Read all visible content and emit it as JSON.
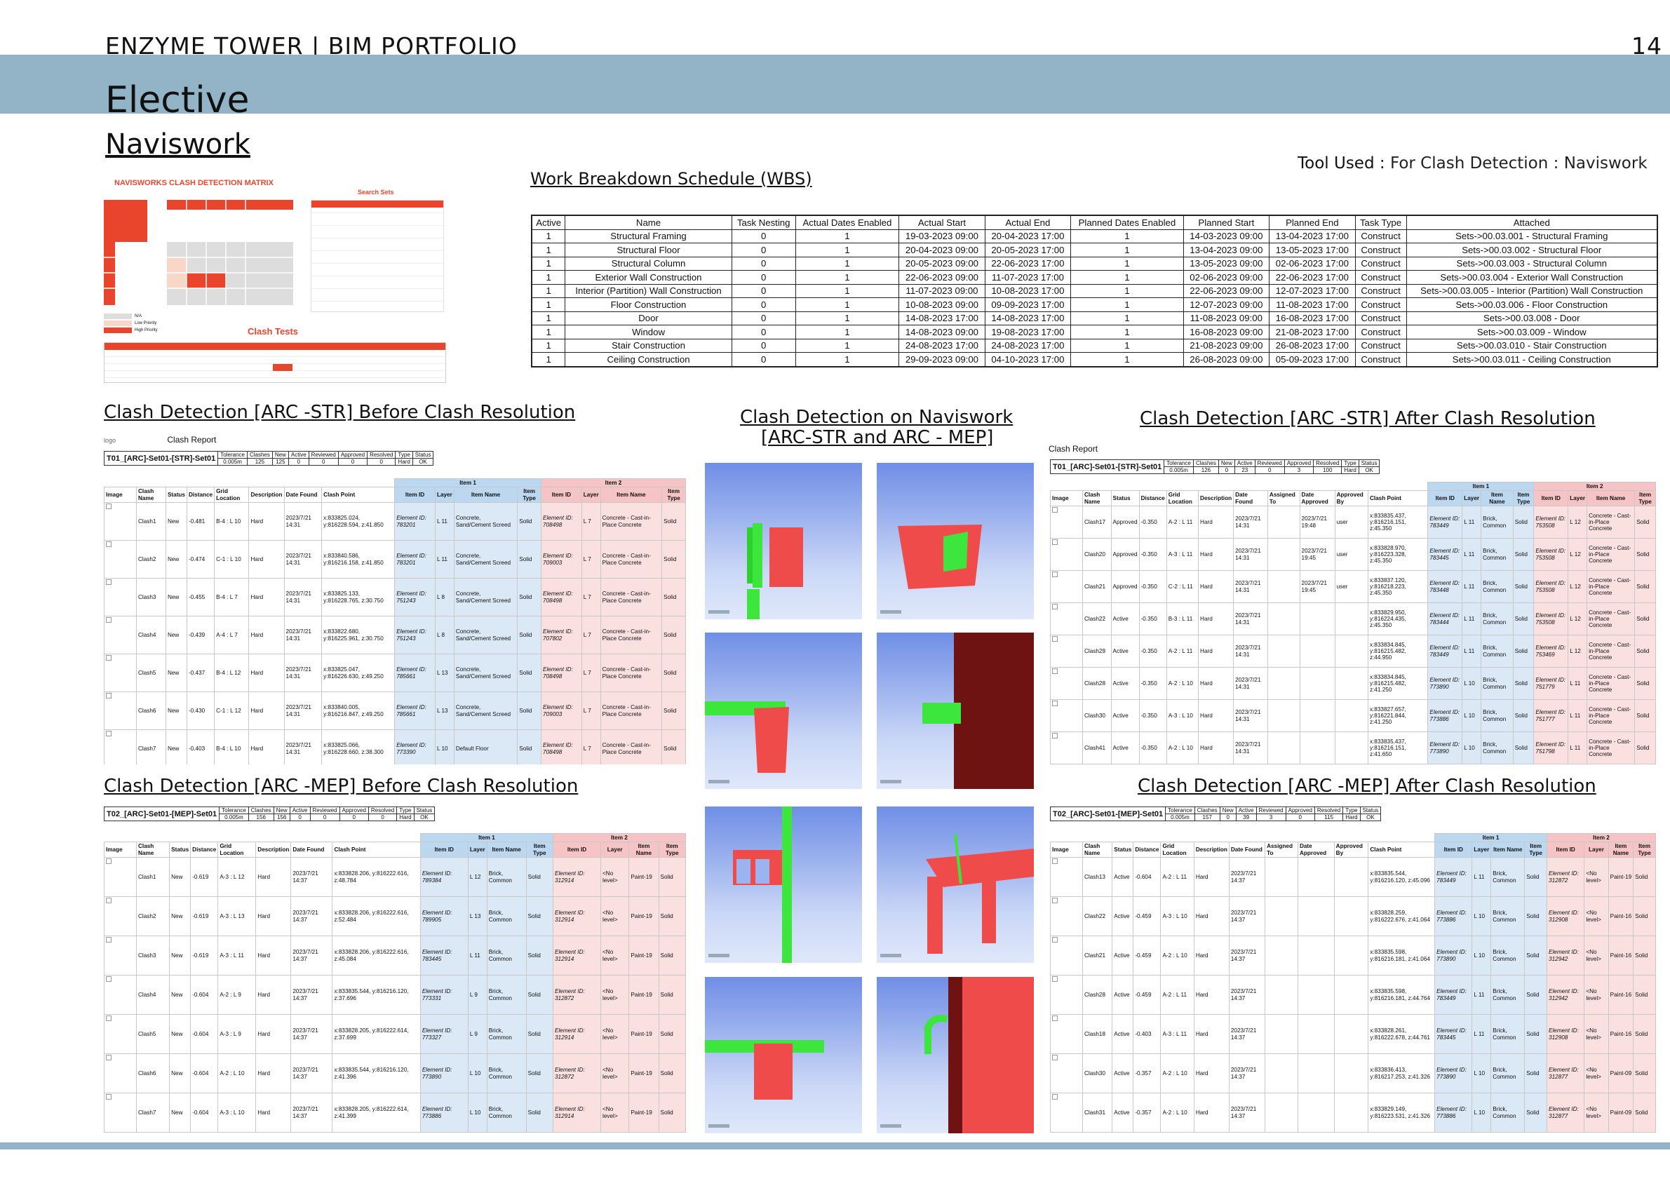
{
  "header": {
    "portfolio": "ENZYME TOWER | BIM PORTFOLIO",
    "page": "14",
    "section": "Elective",
    "subsection": "Naviswork",
    "tool_label": "Tool Used :",
    "tool_value": "For Clash Detection : Naviswork"
  },
  "matrix": {
    "title": "NAVISWORKS CLASH DETECTION MATRIX",
    "search_sets": "Search Sets",
    "clash_tests": "Clash Tests",
    "legend": [
      "N/A",
      "Low Priority",
      "High Priority"
    ]
  },
  "wbs": {
    "title": "Work Breakdown Schedule (WBS)",
    "columns": [
      "Active",
      "Name",
      "Task Nesting",
      "Actual Dates Enabled",
      "Actual Start",
      "Actual End",
      "Planned Dates Enabled",
      "Planned Start",
      "Planned End",
      "Task Type",
      "Attached"
    ],
    "rows": [
      [
        "1",
        "Structural Framing",
        "0",
        "1",
        "19-03-2023 09:00",
        "20-04-2023 17:00",
        "1",
        "14-03-2023 09:00",
        "13-04-2023 17:00",
        "Construct",
        "Sets->00.03.001 - Structural Framing"
      ],
      [
        "1",
        "Structural Floor",
        "0",
        "1",
        "20-04-2023 09:00",
        "20-05-2023 17:00",
        "1",
        "13-04-2023 09:00",
        "13-05-2023 17:00",
        "Construct",
        "Sets->00.03.002 - Structural Floor"
      ],
      [
        "1",
        "Structural Column",
        "0",
        "1",
        "20-05-2023 09:00",
        "22-06-2023 17:00",
        "1",
        "13-05-2023 09:00",
        "02-06-2023 17:00",
        "Construct",
        "Sets->00.03.003 - Structural Column"
      ],
      [
        "1",
        "Exterior Wall Construction",
        "0",
        "1",
        "22-06-2023 09:00",
        "11-07-2023 17:00",
        "1",
        "02-06-2023 09:00",
        "22-06-2023 17:00",
        "Construct",
        "Sets->00.03.004 - Exterior Wall Construction"
      ],
      [
        "1",
        "Interior (Partition) Wall Construction",
        "0",
        "1",
        "11-07-2023 09:00",
        "10-08-2023 17:00",
        "1",
        "22-06-2023 09:00",
        "12-07-2023 17:00",
        "Construct",
        "Sets->00.03.005 - Interior (Partition) Wall Construction"
      ],
      [
        "1",
        "Floor Construction",
        "0",
        "1",
        "10-08-2023 09:00",
        "09-09-2023 17:00",
        "1",
        "12-07-2023 09:00",
        "11-08-2023 17:00",
        "Construct",
        "Sets->00.03.006 - Floor Construction"
      ],
      [
        "1",
        "Door",
        "0",
        "1",
        "14-08-2023 17:00",
        "14-08-2023 17:00",
        "1",
        "11-08-2023 09:00",
        "16-08-2023 17:00",
        "Construct",
        "Sets->00.03.008 - Door"
      ],
      [
        "1",
        "Window",
        "0",
        "1",
        "14-08-2023 09:00",
        "19-08-2023 17:00",
        "1",
        "16-08-2023 09:00",
        "21-08-2023 17:00",
        "Construct",
        "Sets->00.03.009 - Window"
      ],
      [
        "1",
        "Stair Construction",
        "0",
        "1",
        "24-08-2023 17:00",
        "24-08-2023 17:00",
        "1",
        "21-08-2023 09:00",
        "26-08-2023 17:00",
        "Construct",
        "Sets->00.03.010 - Stair Construction"
      ],
      [
        "1",
        "Ceiling Construction",
        "0",
        "1",
        "29-09-2023 09:00",
        "04-10-2023 17:00",
        "1",
        "26-08-2023 09:00",
        "05-09-2023 17:00",
        "Construct",
        "Sets->00.03.011 - Ceiling Construction"
      ]
    ]
  },
  "sections": {
    "arc_str_before": "Clash Detection [ARC -STR] Before Clash Resolution",
    "arc_str_after": "Clash Detection [ARC -STR] After Clash Resolution",
    "arc_mep_before": "Clash Detection [ARC -MEP] Before Clash Resolution",
    "arc_mep_after": "Clash Detection [ARC -MEP] After Clash Resolution",
    "navis_line1": "Clash Detection on Naviswork",
    "navis_line2": "[ARC-STR and ARC - MEP]"
  },
  "report": {
    "logo": "logo",
    "title": "Clash Report",
    "summary_headers": [
      "Tolerance",
      "Clashes",
      "New",
      "Active",
      "Reviewed",
      "Approved",
      "Resolved",
      "Type",
      "Status"
    ]
  },
  "r1": {
    "test": "T01_[ARC]-Set01-[STR]-Set01",
    "summary": [
      "0.005m",
      "125",
      "125",
      "0",
      "0",
      "0",
      "0",
      "Hard",
      "OK"
    ],
    "headers": [
      "Image",
      "Clash Name",
      "Status",
      "Distance",
      "Grid Location",
      "Description",
      "Date Found",
      "Clash Point",
      "Item ID",
      "Layer",
      "Item Name",
      "Item Type",
      "Item ID",
      "Layer",
      "Item Name",
      "Item Type"
    ],
    "rows": [
      [
        "Clash1",
        "New",
        "-0.481",
        "B-4 : L 10",
        "Hard",
        "2023/7/21 14:31",
        "x:833825.024, y:816228.594, z:41.850",
        "783201",
        "L 11",
        "Concrete, Sand/Cement Screed",
        "Solid",
        "708498",
        "L 7",
        "Concrete - Cast-in-Place Concrete",
        "Solid"
      ],
      [
        "Clash2",
        "New",
        "-0.474",
        "C-1 : L 10",
        "Hard",
        "2023/7/21 14:31",
        "x:833840.586, y:816216.158, z:41.850",
        "783201",
        "L 11",
        "Concrete, Sand/Cement Screed",
        "Solid",
        "709003",
        "L 7",
        "Concrete - Cast-in-Place Concrete",
        "Solid"
      ],
      [
        "Clash3",
        "New",
        "-0.455",
        "B-4 : L 7",
        "Hard",
        "2023/7/21 14:31",
        "x:833825.133, y:816228.765, z:30.750",
        "751243",
        "L 8",
        "Concrete, Sand/Cement Screed",
        "Solid",
        "708498",
        "L 7",
        "Concrete - Cast-in-Place Concrete",
        "Solid"
      ],
      [
        "Clash4",
        "New",
        "-0.439",
        "A-4 : L 7",
        "Hard",
        "2023/7/21 14:31",
        "x:833822.680, y:816225.961, z:30.750",
        "751243",
        "L 8",
        "Concrete, Sand/Cement Screed",
        "Solid",
        "707802",
        "L 7",
        "Concrete - Cast-in-Place Concrete",
        "Solid"
      ],
      [
        "Clash5",
        "New",
        "-0.437",
        "B-4 : L 12",
        "Hard",
        "2023/7/21 14:31",
        "x:833825.047, y:816226.630, z:49.250",
        "785661",
        "L 13",
        "Concrete, Sand/Cement Screed",
        "Solid",
        "708498",
        "L 7",
        "Concrete - Cast-in-Place Concrete",
        "Solid"
      ],
      [
        "Clash6",
        "New",
        "-0.430",
        "C-1 : L 12",
        "Hard",
        "2023/7/21 14:31",
        "x:833840.005, y:816216.847, z:49.250",
        "785661",
        "L 13",
        "Concrete, Sand/Cement Screed",
        "Solid",
        "709003",
        "L 7",
        "Concrete - Cast-in-Place Concrete",
        "Solid"
      ],
      [
        "Clash7",
        "New",
        "-0.403",
        "B-4 : L 10",
        "Hard",
        "2023/7/21 14:31",
        "x:833825.066, y:816228.660, z:38.300",
        "773390",
        "L 10",
        "Default Floor",
        "Solid",
        "708498",
        "L 7",
        "Concrete - Cast-in-Place Concrete",
        "Solid"
      ]
    ]
  },
  "r2": {
    "test": "T01_[ARC]-Set01-[STR]-Set01",
    "summary": [
      "0.005m",
      "126",
      "0",
      "23",
      "0",
      "3",
      "100",
      "Hard",
      "OK"
    ],
    "headers": [
      "Image",
      "Clash Name",
      "Status",
      "Distance",
      "Grid Location",
      "Description",
      "Date Found",
      "Assigned To",
      "Date Approved",
      "Approved By",
      "Clash Point",
      "Item ID",
      "Layer",
      "Item Name",
      "Item Type",
      "Item ID",
      "Layer",
      "Item Name",
      "Item Type"
    ],
    "rows": [
      [
        "Clash17",
        "Approved",
        "-0.350",
        "A-2 : L 11",
        "Hard",
        "2023/7/21 14:31",
        "",
        "2023/7/21 19:48",
        "user",
        "x:833835.437, y:816216.151, z:45.350",
        "783449",
        "L 11",
        "Brick, Common",
        "Solid",
        "753508",
        "L 12",
        "Concrete - Cast-in-Place Concrete",
        "Solid"
      ],
      [
        "Clash20",
        "Approved",
        "-0.350",
        "A-3 : L 11",
        "Hard",
        "2023/7/21 14:31",
        "",
        "2023/7/21 19:45",
        "user",
        "x:833828.970, y:816223.328, z:45.350",
        "783445",
        "L 11",
        "Brick, Common",
        "Solid",
        "753508",
        "L 12",
        "Concrete - Cast-in-Place Concrete",
        "Solid"
      ],
      [
        "Clash21",
        "Approved",
        "-0.350",
        "C-2 : L 11",
        "Hard",
        "2023/7/21 14:31",
        "",
        "2023/7/21 19:45",
        "user",
        "x:833837.120, y:816218.223, z:45.350",
        "783448",
        "L 11",
        "Brick, Common",
        "Solid",
        "753508",
        "L 12",
        "Concrete - Cast-in-Place Concrete",
        "Solid"
      ],
      [
        "Clash22",
        "Active",
        "-0.350",
        "B-3 : L 11",
        "Hard",
        "2023/7/21 14:31",
        "",
        "",
        "",
        "x:833829.950, y:816224.435, z:45.350",
        "783444",
        "L 11",
        "Brick, Common",
        "Solid",
        "753508",
        "L 12",
        "Concrete - Cast-in-Place Concrete",
        "Solid"
      ],
      [
        "Clash29",
        "Active",
        "-0.350",
        "A-2 : L 11",
        "Hard",
        "2023/7/21 14:31",
        "",
        "",
        "",
        "x:833834.845, y:816215.482, z:44.950",
        "783449",
        "L 11",
        "Brick, Common",
        "Solid",
        "753469",
        "L 12",
        "Concrete - Cast-in-Place Concrete",
        "Solid"
      ],
      [
        "Clash28",
        "Active",
        "-0.350",
        "A-2 : L 10",
        "Hard",
        "2023/7/21 14:31",
        "",
        "",
        "",
        "x:833834.845, y:816215.482, z:41.250",
        "773890",
        "L 10",
        "Brick, Common",
        "Solid",
        "751779",
        "L 11",
        "Concrete - Cast-in-Place Concrete",
        "Solid"
      ],
      [
        "Clash30",
        "Active",
        "-0.350",
        "A-3 : L 10",
        "Hard",
        "2023/7/21 14:31",
        "",
        "",
        "",
        "x:833827.657, y:816221.844, z:41.250",
        "773886",
        "L 10",
        "Brick, Common",
        "Solid",
        "751777",
        "L 11",
        "Concrete - Cast-in-Place Concrete",
        "Solid"
      ],
      [
        "Clash41",
        "Active",
        "-0.350",
        "A-2 : L 10",
        "Hard",
        "2023/7/21 14:31",
        "",
        "",
        "",
        "x:833835.437, y:816216.151, z:41.650",
        "773890",
        "L 10",
        "Brick, Common",
        "Solid",
        "751798",
        "L 11",
        "Concrete - Cast-in-Place Concrete",
        "Solid"
      ]
    ]
  },
  "r3": {
    "test": "T02_[ARC]-Set01-[MEP]-Set01",
    "summary": [
      "0.005m",
      "156",
      "156",
      "0",
      "0",
      "0",
      "0",
      "Hard",
      "OK"
    ],
    "headers": [
      "Image",
      "Clash Name",
      "Status",
      "Distance",
      "Grid Location",
      "Description",
      "Date Found",
      "Clash Point",
      "Item ID",
      "Layer",
      "Item Name",
      "Item Type",
      "Item ID",
      "Layer",
      "Item Name",
      "Item Type"
    ],
    "rows": [
      [
        "Clash1",
        "New",
        "-0.619",
        "A-3 : L 12",
        "Hard",
        "2023/7/21 14:37",
        "x:833828.206, y:816222.616, z:48.784",
        "789384",
        "L 12",
        "Brick, Common",
        "Solid",
        "312914",
        "<No level>",
        "Paint-19",
        "Solid"
      ],
      [
        "Clash2",
        "New",
        "-0.619",
        "A-3 : L 13",
        "Hard",
        "2023/7/21 14:37",
        "x:833828.206, y:816222.616, z:52.484",
        "789905",
        "L 13",
        "Brick, Common",
        "Solid",
        "312914",
        "<No level>",
        "Paint-19",
        "Solid"
      ],
      [
        "Clash3",
        "New",
        "-0.619",
        "A-3 : L 11",
        "Hard",
        "2023/7/21 14:37",
        "x:833828.206, y:816222.616, z:45.084",
        "783445",
        "L 11",
        "Brick, Common",
        "Solid",
        "312914",
        "<No level>",
        "Paint-19",
        "Solid"
      ],
      [
        "Clash4",
        "New",
        "-0.604",
        "A-2 : L 9",
        "Hard",
        "2023/7/21 14:37",
        "x:833835.544, y:816216.120, z:37.696",
        "773331",
        "L 9",
        "Brick, Common",
        "Solid",
        "312872",
        "<No level>",
        "Paint-19",
        "Solid"
      ],
      [
        "Clash5",
        "New",
        "-0.604",
        "A-3 : L 9",
        "Hard",
        "2023/7/21 14:37",
        "x:833828.205, y:816222.614, z:37.699",
        "773327",
        "L 9",
        "Brick, Common",
        "Solid",
        "312914",
        "<No level>",
        "Paint-19",
        "Solid"
      ],
      [
        "Clash6",
        "New",
        "-0.604",
        "A-2 : L 10",
        "Hard",
        "2023/7/21 14:37",
        "x:833835.544, y:816216.120, z:41.396",
        "773890",
        "L 10",
        "Brick, Common",
        "Solid",
        "312872",
        "<No level>",
        "Paint-19",
        "Solid"
      ],
      [
        "Clash7",
        "New",
        "-0.604",
        "A-3 : L 10",
        "Hard",
        "2023/7/21 14:37",
        "x:833828.205, y:816222.614, z:41.399",
        "773886",
        "L 10",
        "Brick, Common",
        "Solid",
        "312914",
        "<No level>",
        "Paint-19",
        "Solid"
      ]
    ]
  },
  "r4": {
    "test": "T02_[ARC]-Set01-[MEP]-Set01",
    "summary": [
      "0.005m",
      "157",
      "0",
      "39",
      "3",
      "0",
      "115",
      "Hard",
      "OK"
    ],
    "headers": [
      "Image",
      "Clash Name",
      "Status",
      "Distance",
      "Grid Location",
      "Description",
      "Date Found",
      "Assigned To",
      "Date Approved",
      "Approved By",
      "Clash Point",
      "Item ID",
      "Layer",
      "Item Name",
      "Item Type",
      "Item ID",
      "Layer",
      "Item Name",
      "Item Type"
    ],
    "rows": [
      [
        "Clash13",
        "Active",
        "-0.604",
        "A-2 : L 11",
        "Hard",
        "2023/7/21 14:37",
        "",
        "",
        "",
        "x:833835.544, y:816216.120, z:45.096",
        "783449",
        "L 11",
        "Brick, Common",
        "Solid",
        "312872",
        "<No level>",
        "Paint-19",
        "Solid"
      ],
      [
        "Clash22",
        "Active",
        "-0.459",
        "A-3 : L 10",
        "Hard",
        "2023/7/21 14:37",
        "",
        "",
        "",
        "x:833828.259, y:816222.676, z:41.064",
        "773886",
        "L 10",
        "Brick, Common",
        "Solid",
        "312908",
        "<No level>",
        "Paint-16",
        "Solid"
      ],
      [
        "Clash21",
        "Active",
        "-0.459",
        "A-2 : L 10",
        "Hard",
        "2023/7/21 14:37",
        "",
        "",
        "",
        "x:833835.598, y:816216.181, z:41.064",
        "773890",
        "L 10",
        "Brick, Common",
        "Solid",
        "312942",
        "<No level>",
        "Paint-16",
        "Solid"
      ],
      [
        "Clash28",
        "Active",
        "-0.459",
        "A-2 : L 11",
        "Hard",
        "2023/7/21 14:37",
        "",
        "",
        "",
        "x:833835.598, y:816216.181, z:44.764",
        "783449",
        "L 11",
        "Brick, Common",
        "Solid",
        "312942",
        "<No level>",
        "Paint-16",
        "Solid"
      ],
      [
        "Clash18",
        "Active",
        "-0.403",
        "A-3 : L 11",
        "Hard",
        "2023/7/21 14:37",
        "",
        "",
        "",
        "x:833828.261, y:816222.678, z:44.761",
        "783445",
        "L 11",
        "Brick, Common",
        "Solid",
        "312908",
        "<No level>",
        "Paint-16",
        "Solid"
      ],
      [
        "Clash30",
        "Active",
        "-0.357",
        "A-2 : L 10",
        "Hard",
        "2023/7/21 14:37",
        "",
        "",
        "",
        "x:833836.413, y:816217.253, z:41.326",
        "773890",
        "L 10",
        "Brick, Common",
        "Solid",
        "312877",
        "<No level>",
        "Paint-09",
        "Solid"
      ],
      [
        "Clash31",
        "Active",
        "-0.357",
        "A-2 : L 10",
        "Hard",
        "2023/7/21 14:37",
        "",
        "",
        "",
        "x:833829.149, y:816223.531, z:41.326",
        "773886",
        "L 10",
        "Brick, Common",
        "Solid",
        "312877",
        "<No level>",
        "Paint-09",
        "Solid"
      ]
    ]
  },
  "item_groups": {
    "item1": "Item 1",
    "item2": "Item 2",
    "element_prefix": "Element ID:"
  },
  "colors": {
    "band": "#92b4c6",
    "clash_red": "#f04b4b",
    "clash_green": "#3ce63c"
  }
}
